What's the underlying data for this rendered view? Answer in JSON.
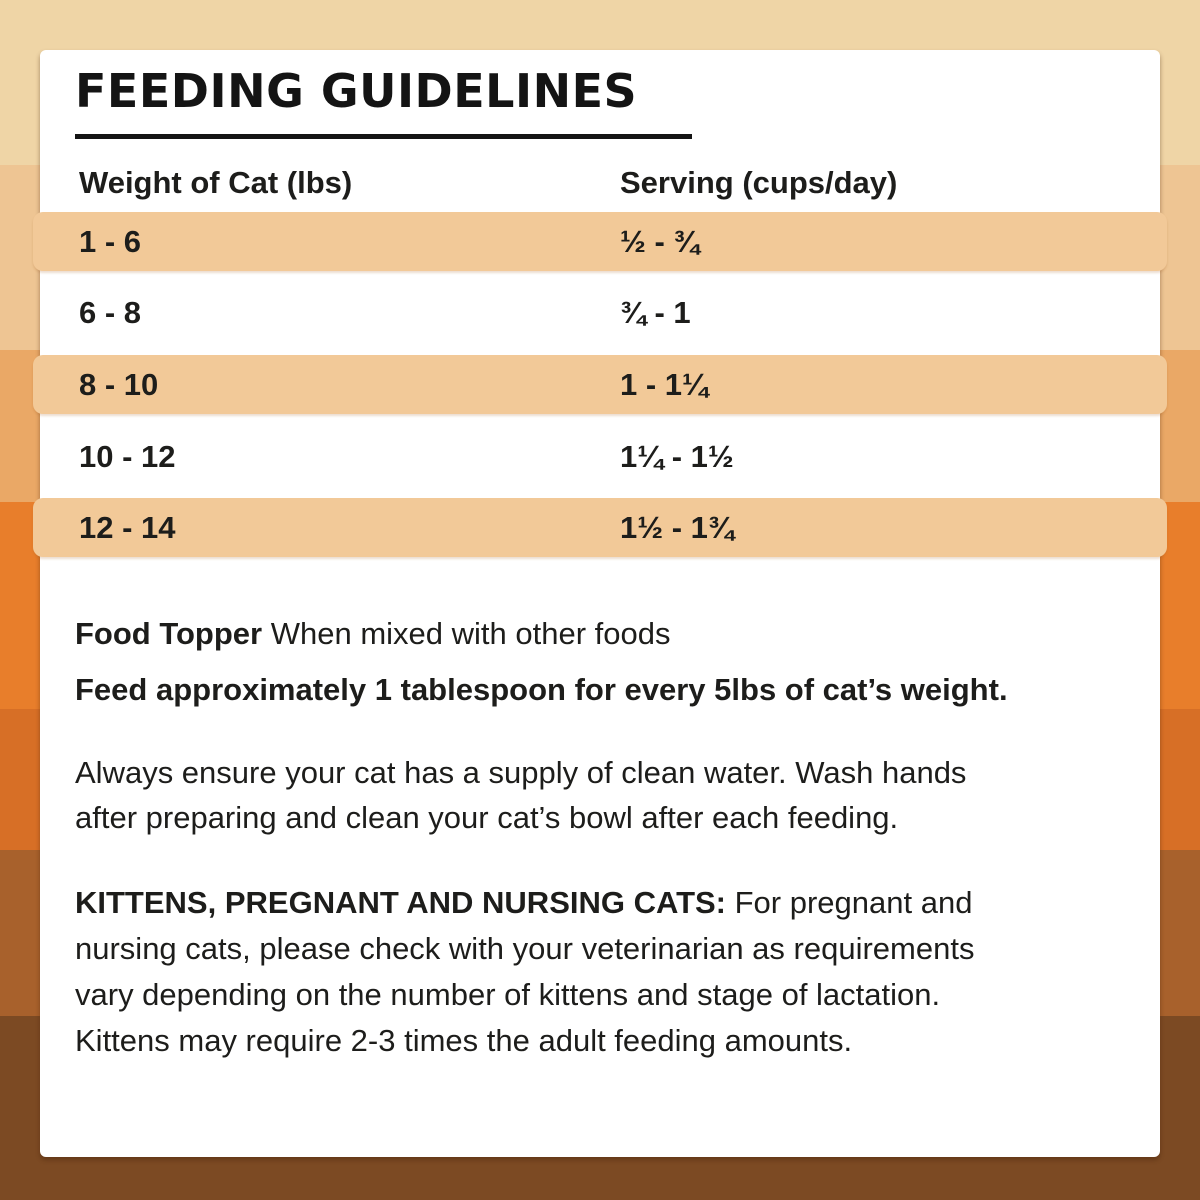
{
  "title": "FEEDING GUIDELINES",
  "colors": {
    "stripes": [
      "#EFD5A6",
      "#EEC593",
      "#EAA866",
      "#E87E2B",
      "#D76F26",
      "#A8612C",
      "#7C4A23"
    ],
    "pill": "#F2C998",
    "card": "#FFFFFF",
    "text": "#1D1D1B"
  },
  "table": {
    "columns": [
      "Weight of Cat (lbs)",
      "Serving (cups/day)"
    ],
    "rows": [
      {
        "weight": "1 - 6",
        "serving": "½ - ¾",
        "highlighted": true
      },
      {
        "weight": "6 - 8",
        "serving": "¾ - 1",
        "highlighted": false
      },
      {
        "weight": "8 - 10",
        "serving": "1 - 1¼",
        "highlighted": true
      },
      {
        "weight": "10 - 12",
        "serving": "1¼ - 1½",
        "highlighted": false
      },
      {
        "weight": "12 - 14",
        "serving": "1½ - 1¾",
        "highlighted": true
      }
    ]
  },
  "notes": {
    "topper_label": "Food Topper",
    "topper_text": "When mixed with other foods",
    "feed_line": "Feed approximately 1 tablespoon for every 5lbs of cat’s weight.",
    "water": "Always ensure your cat has a supply of clean water. Wash hands\nafter preparing and clean your cat’s bowl after each feeding.",
    "kittens_label": "KITTENS, PREGNANT AND NURSING CATS:",
    "kittens_text": "For pregnant and\nnursing cats, please check with your veterinarian as requirements\nvary depending on the number of kittens and stage of lactation.\nKittens may require 2-3 times the adult feeding amounts."
  }
}
